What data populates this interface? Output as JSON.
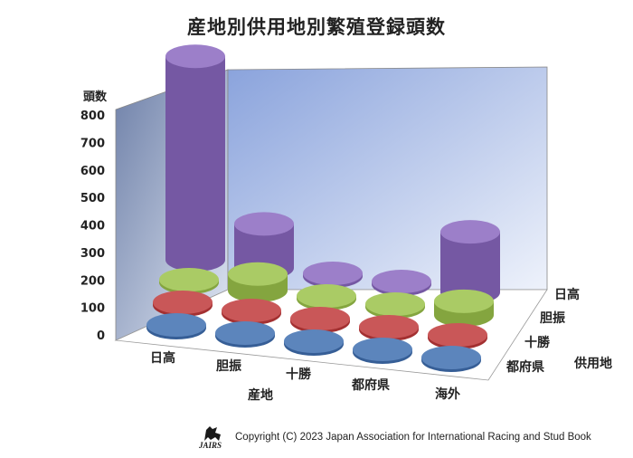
{
  "chart_data": {
    "type": "bar",
    "title": "産地別供用地別繁殖登録頭数",
    "ylabel": "頭数",
    "xlabel": "産地",
    "zlabel": "供用地",
    "ylim": [
      0,
      800
    ],
    "yticks": [
      "0",
      "100",
      "200",
      "300",
      "400",
      "500",
      "600",
      "700",
      "800"
    ],
    "categories": [
      "日高",
      "胆振",
      "十勝",
      "都府県",
      "海外"
    ],
    "series": [
      {
        "name": "都府県",
        "color": "#3f6fb0",
        "values": [
          5,
          3,
          2,
          3,
          4
        ]
      },
      {
        "name": "十勝",
        "color": "#c0393a",
        "values": [
          3,
          2,
          2,
          2,
          4
        ]
      },
      {
        "name": "胆振",
        "color": "#9bc24a",
        "values": [
          4,
          60,
          4,
          3,
          50
        ]
      },
      {
        "name": "日高",
        "color": "#8a68c0",
        "values": [
          740,
          160,
          3,
          3,
          220
        ]
      }
    ]
  },
  "footer": {
    "logo_text": "JAIRS",
    "copyright": "Copyright (C) 2023 Japan Association for International Racing and Stud Book"
  }
}
